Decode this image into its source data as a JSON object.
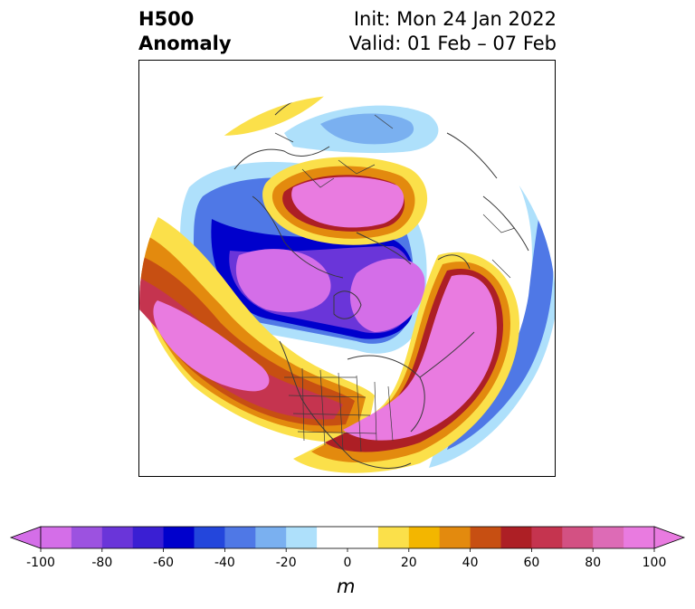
{
  "title": {
    "left_line1": "H500",
    "left_line2": "Anomaly",
    "right_line1": "Init: Mon 24 Jan 2022",
    "right_line2": "Valid: 01 Feb – 07 Feb"
  },
  "colorbar": {
    "unit": "m",
    "min": -100,
    "max": 100,
    "step": 10,
    "extend": "both",
    "tick_labels": [
      "-100",
      "-80",
      "-60",
      "-40",
      "-20",
      "0",
      "20",
      "40",
      "60",
      "80",
      "100"
    ],
    "colors": [
      "#d46ee8",
      "#9c52e0",
      "#6a35d9",
      "#3a1fd3",
      "#0000cc",
      "#2346dc",
      "#4f78e6",
      "#7ab0f0",
      "#aee0fb",
      "#ffffff",
      "#ffffff",
      "#fbe04a",
      "#f3b600",
      "#e38a0e",
      "#c74f12",
      "#ad1f25",
      "#c5344f",
      "#d35183",
      "#dd6bb6",
      "#e97be0"
    ]
  },
  "map": {
    "projection": "north-polar-stereographic",
    "features": [
      "coastlines",
      "country-borders",
      "us-state-borders"
    ],
    "anomaly_regions": [
      {
        "name": "north-pacific-ridge",
        "sign": "positive",
        "peak_m": 100
      },
      {
        "name": "eastern-north-america-ridge",
        "sign": "positive",
        "peak_m": 100
      },
      {
        "name": "siberian-ridge",
        "sign": "positive",
        "peak_m": 100
      },
      {
        "name": "polar-trough",
        "sign": "negative",
        "peak_m": -100
      },
      {
        "name": "arctic-canada-trough",
        "sign": "negative",
        "peak_m": -100
      },
      {
        "name": "north-atlantic-trough",
        "sign": "negative",
        "peak_m": -50
      },
      {
        "name": "europe-trough",
        "sign": "negative",
        "peak_m": -30
      }
    ]
  }
}
